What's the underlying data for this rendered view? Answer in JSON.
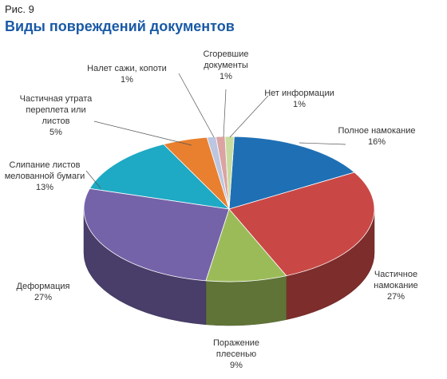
{
  "figure_label": "Рис. 9",
  "chart_data": {
    "type": "pie",
    "title": "Виды повреждений документов",
    "slices": [
      {
        "label": [
          "Полное намокание"
        ],
        "pct": "16%",
        "value": 16,
        "color": "#1f6fb4"
      },
      {
        "label": [
          "Частичное",
          "намокание"
        ],
        "pct": "27%",
        "value": 27,
        "color": "#c94845"
      },
      {
        "label": [
          "Поражение",
          "плесенью"
        ],
        "pct": "9%",
        "value": 9,
        "color": "#9bbb59"
      },
      {
        "label": [
          "Деформация"
        ],
        "pct": "27%",
        "value": 27,
        "color": "#7563a9"
      },
      {
        "label": [
          "Слипание листов",
          "мелованной бумаги"
        ],
        "pct": "13%",
        "value": 13,
        "color": "#1ea9c4"
      },
      {
        "label": [
          "Частичная утрата",
          "переплета или",
          "листов"
        ],
        "pct": "5%",
        "value": 5,
        "color": "#e8802f"
      },
      {
        "label": [
          "Налет сажи, копоти"
        ],
        "pct": "1%",
        "value": 1,
        "color": "#bcc6e0"
      },
      {
        "label": [
          "Сгоревшие",
          "документы"
        ],
        "pct": "1%",
        "value": 1,
        "color": "#dba3a2"
      },
      {
        "label": [
          "Нет информации"
        ],
        "pct": "1%",
        "value": 1,
        "color": "#c9dca0"
      }
    ]
  }
}
